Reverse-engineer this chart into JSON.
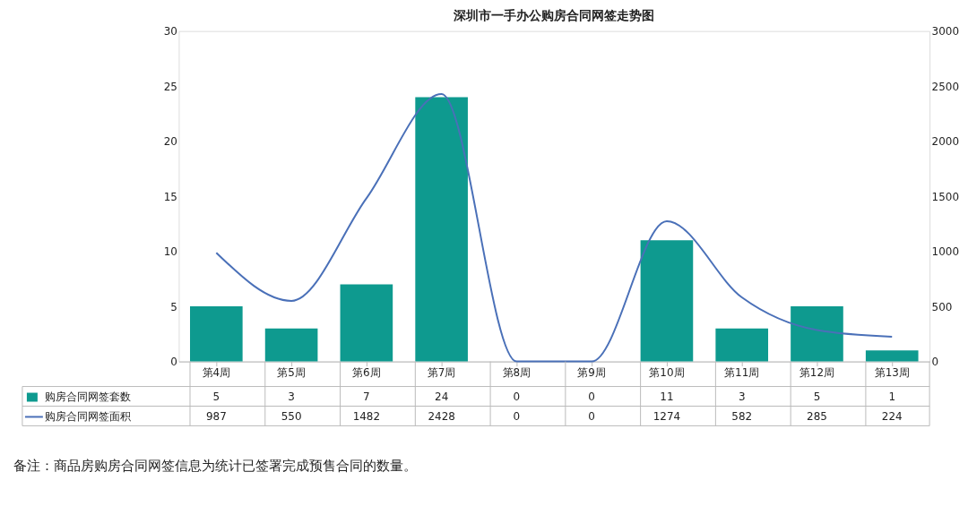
{
  "chart_data": {
    "type": "bar",
    "title": "深圳市一手办公购房合同网签走势图",
    "categories": [
      "第4周",
      "第5周",
      "第6周",
      "第7周",
      "第8周",
      "第9周",
      "第10周",
      "第11周",
      "第12周",
      "第13周"
    ],
    "series": [
      {
        "name": "购房合同网签套数",
        "axis": "y",
        "color": "#0e9a8f",
        "values": [
          5,
          3,
          7,
          24,
          0,
          0,
          11,
          3,
          5,
          1
        ]
      },
      {
        "name": "购房合同网签面积",
        "type": "line",
        "axis": "y2",
        "color": "#4a70b8",
        "values": [
          987,
          550,
          1482,
          2428,
          0,
          0,
          1274,
          582,
          285,
          224
        ]
      }
    ],
    "ylim": [
      0,
      30
    ],
    "yticks": [
      0,
      5,
      10,
      15,
      20,
      25,
      30
    ],
    "y2lim": [
      0,
      3000
    ],
    "y2ticks": [
      0,
      500,
      1000,
      1500,
      2000,
      2500,
      3000
    ],
    "grid": false,
    "legend": "bottom",
    "data_labels": true,
    "annotations": [
      "备注：商品房购房合同网签信息为统计已签署完成预售合同的数量。"
    ]
  }
}
